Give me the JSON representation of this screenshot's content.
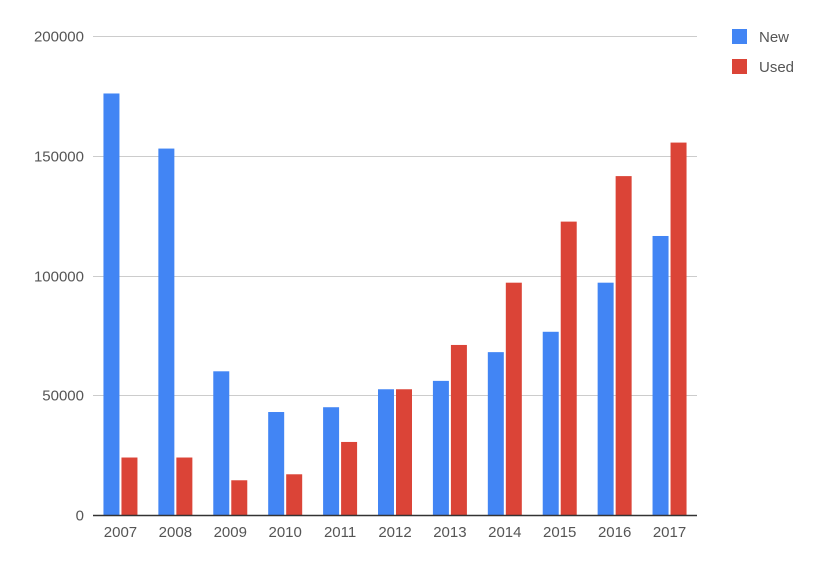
{
  "chart_data": {
    "type": "bar",
    "categories": [
      "2007",
      "2008",
      "2009",
      "2010",
      "2011",
      "2012",
      "2013",
      "2014",
      "2015",
      "2016",
      "2017"
    ],
    "series": [
      {
        "name": "New",
        "color": "#4285f4",
        "values": [
          176000,
          153000,
          60000,
          43000,
          45000,
          52500,
          56000,
          68000,
          76500,
          97000,
          116500
        ]
      },
      {
        "name": "Used",
        "color": "#db4437",
        "values": [
          24000,
          24000,
          14500,
          17000,
          30500,
          52500,
          71000,
          97000,
          122500,
          141500,
          155500
        ]
      }
    ],
    "title": "",
    "xlabel": "",
    "ylabel": "",
    "ylim": [
      0,
      200000
    ],
    "yticks": [
      0,
      50000,
      100000,
      150000,
      200000
    ],
    "grid": true,
    "legend_position": "right"
  }
}
